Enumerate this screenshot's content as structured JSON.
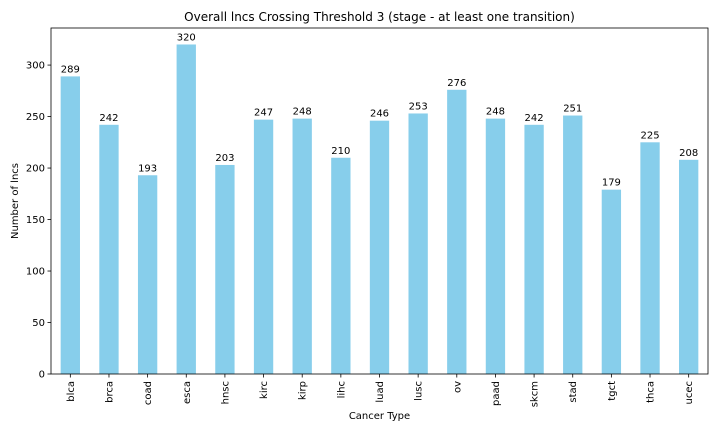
{
  "chart_data": {
    "type": "bar",
    "title": "Overall lncs Crossing Threshold 3 (stage - at least one transition)",
    "xlabel": "Cancer Type",
    "ylabel": "Number of lncs",
    "categories": [
      "blca",
      "brca",
      "coad",
      "esca",
      "hnsc",
      "kirc",
      "kirp",
      "lihc",
      "luad",
      "lusc",
      "ov",
      "paad",
      "skcm",
      "stad",
      "tgct",
      "thca",
      "ucec"
    ],
    "values": [
      289,
      242,
      193,
      320,
      203,
      247,
      248,
      210,
      246,
      253,
      276,
      248,
      242,
      251,
      179,
      225,
      208
    ],
    "ylim": [
      0,
      336
    ],
    "yticks": [
      0,
      50,
      100,
      150,
      200,
      250,
      300
    ],
    "bar_color": "#87CEEB",
    "grid": false,
    "legend": "none"
  }
}
